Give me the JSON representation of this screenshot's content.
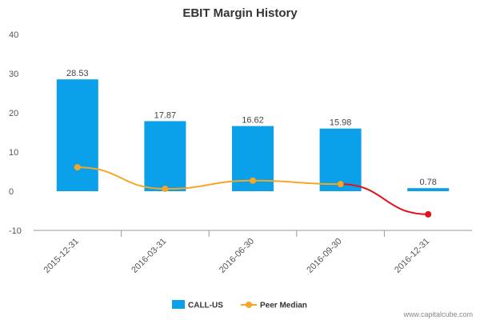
{
  "colors": {
    "bar": "#0aa0ea",
    "peer_line": "#f6a623",
    "peer_decline": "#e3111b",
    "grid": "#e6e6e6",
    "axis": "#999999"
  },
  "chart_data": {
    "type": "bar",
    "title": "EBIT Margin History",
    "xlabel": "",
    "ylabel": "",
    "categories": [
      "2015-12-31",
      "2016-03-31",
      "2016-06-30",
      "2016-09-30",
      "2016-12-31"
    ],
    "ylim": [
      -10,
      40
    ],
    "yticks": [
      40,
      30,
      20,
      10,
      0,
      -10
    ],
    "grid": false,
    "legend_position": "bottom",
    "series": [
      {
        "name": "CALL-US",
        "kind": "bar",
        "values": [
          28.53,
          17.87,
          16.62,
          15.98,
          0.78
        ],
        "labels": [
          "28.53",
          "17.87",
          "16.62",
          "15.98",
          "0.78"
        ]
      },
      {
        "name": "Peer Median",
        "kind": "line",
        "values": [
          6.1,
          0.6,
          2.7,
          1.8,
          -5.9
        ]
      }
    ],
    "watermark": "www.capitalcube.com"
  }
}
